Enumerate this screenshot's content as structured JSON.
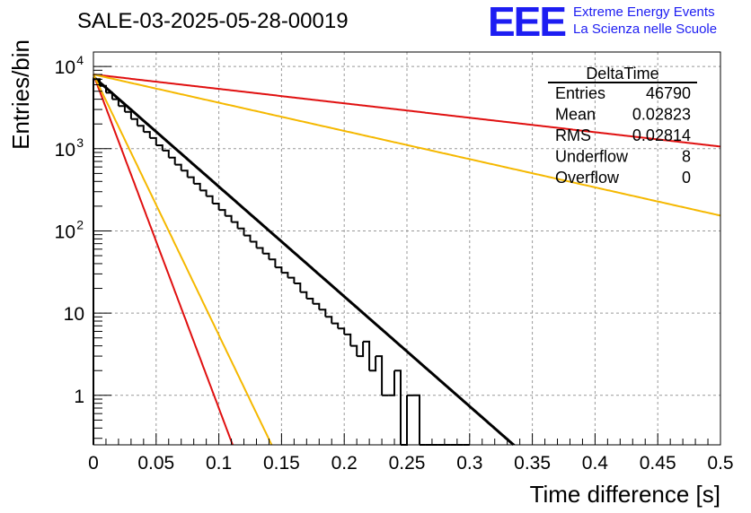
{
  "title": "SALE-03-2025-05-28-00019",
  "logo": {
    "mark": "EEE",
    "line1": "Extreme Energy Events",
    "line2": "La Scienza nelle Scuole",
    "color": "#1d1df2"
  },
  "chart_data": {
    "type": "histogram",
    "xlabel": "Time difference [s]",
    "ylabel": "Entries/bin",
    "xlim": [
      0,
      0.5
    ],
    "ylim": [
      0.25,
      15000
    ],
    "yscale": "log",
    "grid": true,
    "x_ticks": [
      "0",
      "0.05",
      "0.1",
      "0.15",
      "0.2",
      "0.25",
      "0.3",
      "0.35",
      "0.4",
      "0.45",
      "0.5"
    ],
    "y_ticks": [
      {
        "value": 1,
        "label": "1"
      },
      {
        "value": 10,
        "label": "10"
      },
      {
        "value": 100,
        "label": "10",
        "exp": "2"
      },
      {
        "value": 1000,
        "label": "10",
        "exp": "3"
      },
      {
        "value": 10000,
        "label": "10",
        "exp": "4"
      }
    ],
    "histogram": {
      "bin_width": 0.005,
      "bin_start": 0,
      "color": "#000000",
      "counts": [
        7000,
        5800,
        4800,
        4000,
        3300,
        2800,
        2300,
        1900,
        1600,
        1350,
        1100,
        950,
        780,
        640,
        540,
        450,
        375,
        310,
        265,
        215,
        180,
        152,
        128,
        107,
        88,
        74,
        62,
        53,
        45,
        36,
        31,
        27,
        23,
        18,
        15,
        13,
        11,
        9,
        7.5,
        6.5,
        5.5,
        4,
        3,
        4.5,
        2,
        3,
        1,
        1,
        2,
        0,
        1,
        1,
        0,
        0,
        0,
        0,
        0,
        0,
        0,
        0
      ]
    },
    "fits": [
      {
        "color": "#000000",
        "width": 3,
        "a": 7500,
        "tau": 0.0325
      },
      {
        "color": "#e01010",
        "width": 2,
        "a": 8000,
        "tau": 0.0107
      },
      {
        "color": "#f5b800",
        "width": 2,
        "a": 8000,
        "tau": 0.0137
      },
      {
        "color": "#e01010",
        "width": 2,
        "a": 8000,
        "tau": 0.2475
      },
      {
        "color": "#f5b800",
        "width": 2,
        "a": 8000,
        "tau": 0.1265
      }
    ],
    "stats": {
      "title": "DeltaTime",
      "rows": [
        {
          "label": "Entries",
          "value": "46790"
        },
        {
          "label": "Mean",
          "value": "0.02823"
        },
        {
          "label": "RMS",
          "value": "0.02814"
        },
        {
          "label": "Underflow",
          "value": "8"
        },
        {
          "label": "Overflow",
          "value": "0"
        }
      ]
    }
  }
}
